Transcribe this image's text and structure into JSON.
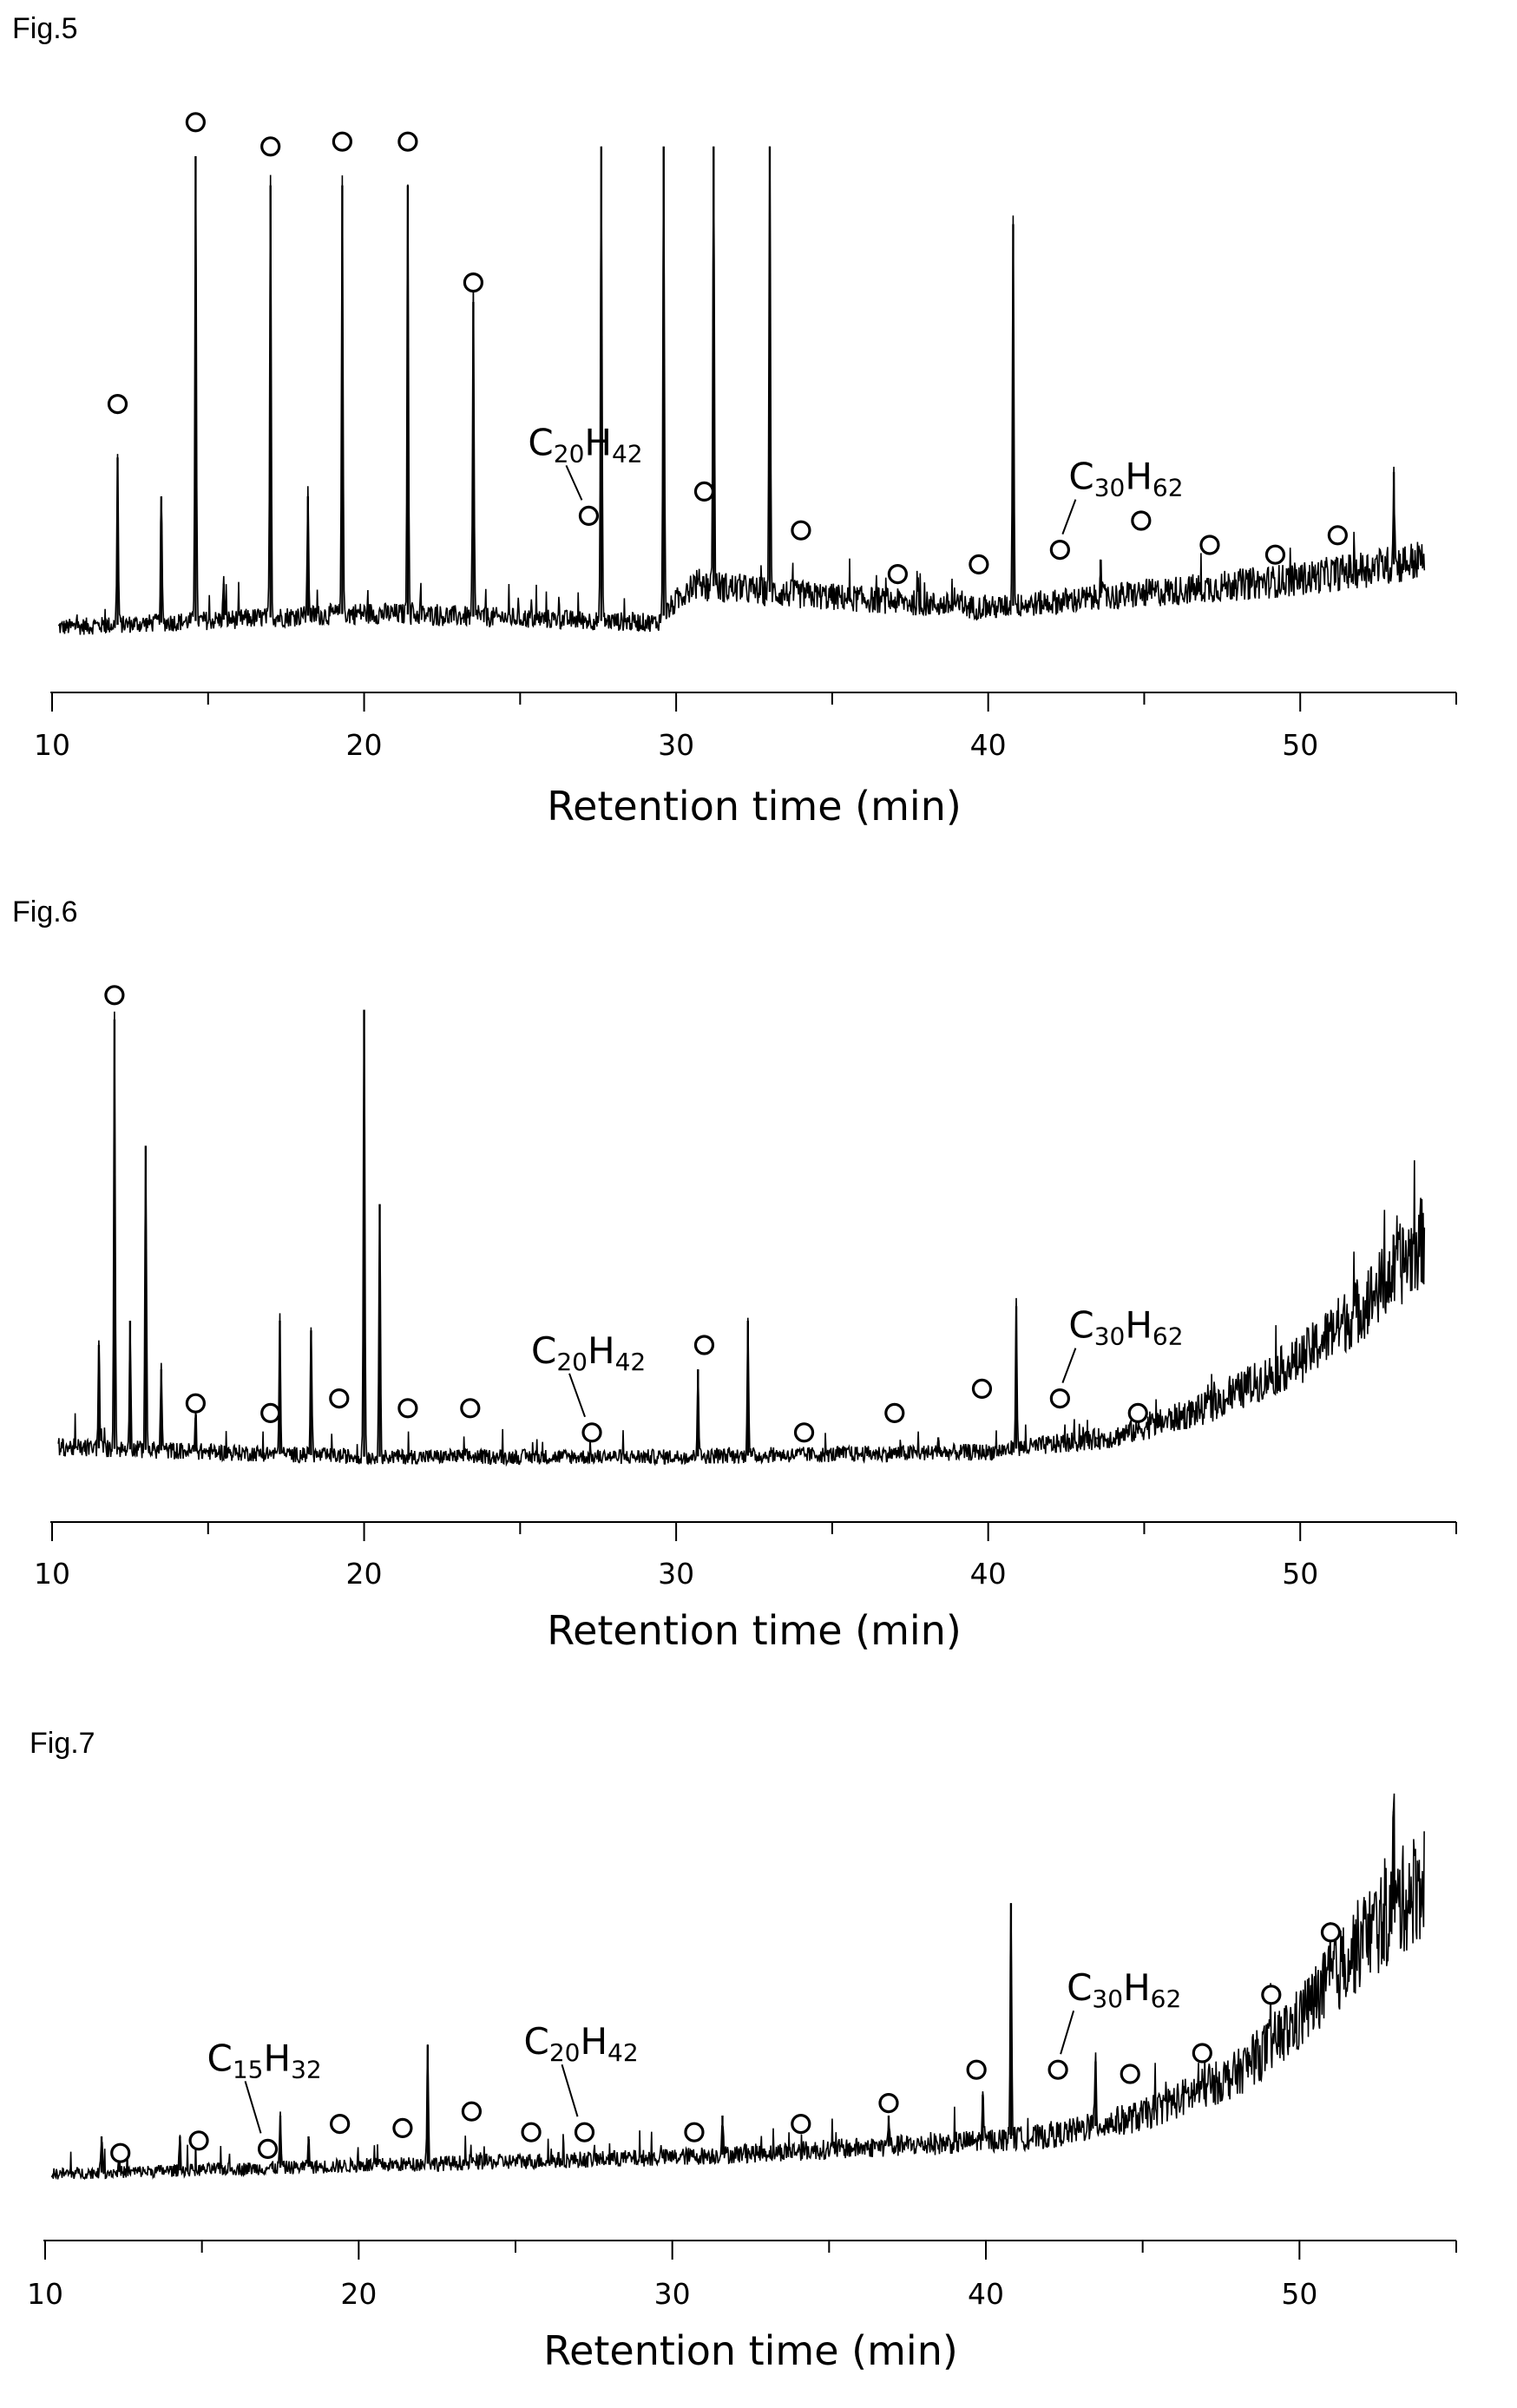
{
  "chart_data": [
    {
      "type": "line",
      "figure_label": "Fig.5",
      "xlabel": "Retention time (min)",
      "ylabel": "",
      "xlim": [
        10,
        55
      ],
      "xticks": [
        "10",
        "20",
        "30",
        "40",
        "50"
      ],
      "y_axis_visible": false,
      "grid": false,
      "baseline": [
        [
          10.2,
          0.03
        ],
        [
          20,
          0.06
        ],
        [
          29.4,
          0.04
        ],
        [
          30.5,
          0.12
        ],
        [
          33.5,
          0.1
        ],
        [
          40,
          0.07
        ],
        [
          45,
          0.1
        ],
        [
          50,
          0.13
        ],
        [
          54,
          0.17
        ]
      ],
      "peaks": [
        [
          12.1,
          0.38
        ],
        [
          13.5,
          0.3
        ],
        [
          14.6,
          1.0
        ],
        [
          15.5,
          0.12
        ],
        [
          17.0,
          0.94
        ],
        [
          18.2,
          0.3
        ],
        [
          19.3,
          0.94
        ],
        [
          21.4,
          0.94
        ],
        [
          23.5,
          0.7
        ],
        [
          27.6,
          1.02
        ],
        [
          29.6,
          1.02
        ],
        [
          31.2,
          1.02
        ],
        [
          33.0,
          1.02
        ],
        [
          40.8,
          0.86
        ],
        [
          43.6,
          0.17
        ],
        [
          53.0,
          0.35
        ]
      ],
      "markers": [
        [
          12.1,
          0.49
        ],
        [
          14.6,
          1.07
        ],
        [
          17.0,
          1.02
        ],
        [
          19.3,
          1.03
        ],
        [
          21.4,
          1.03
        ],
        [
          23.5,
          0.74
        ],
        [
          27.2,
          0.26
        ],
        [
          30.9,
          0.31
        ],
        [
          34.0,
          0.23
        ],
        [
          37.1,
          0.14
        ],
        [
          39.7,
          0.16
        ],
        [
          42.3,
          0.19
        ],
        [
          44.9,
          0.25
        ],
        [
          47.1,
          0.2
        ],
        [
          49.2,
          0.18
        ],
        [
          51.2,
          0.22
        ]
      ],
      "labels": [
        {
          "C": "C",
          "n1": "20",
          "H": "H",
          "n2": "42",
          "x": 27.2
        },
        {
          "C": "C",
          "n1": "30",
          "H": "H",
          "n2": "62",
          "x": 42.3
        }
      ]
    },
    {
      "type": "line",
      "figure_label": "Fig.6",
      "xlabel": "Retention time (min)",
      "ylabel": "",
      "xlim": [
        10,
        55
      ],
      "xticks": [
        "10",
        "20",
        "30",
        "40",
        "50"
      ],
      "y_axis_visible": false,
      "grid": false,
      "baseline": [
        [
          10.2,
          0.04
        ],
        [
          20,
          0.02
        ],
        [
          30,
          0.02
        ],
        [
          40,
          0.03
        ],
        [
          44,
          0.06
        ],
        [
          47,
          0.12
        ],
        [
          50,
          0.22
        ],
        [
          52,
          0.33
        ],
        [
          54,
          0.47
        ]
      ],
      "peaks": [
        [
          11.5,
          0.25
        ],
        [
          12.0,
          0.92
        ],
        [
          12.5,
          0.3
        ],
        [
          13.0,
          0.66
        ],
        [
          13.5,
          0.2
        ],
        [
          14.6,
          0.1
        ],
        [
          17.3,
          0.3
        ],
        [
          18.3,
          0.28
        ],
        [
          20.0,
          0.94
        ],
        [
          20.5,
          0.54
        ],
        [
          30.7,
          0.2
        ],
        [
          32.3,
          0.3
        ],
        [
          38.4,
          0.06
        ],
        [
          40.9,
          0.33
        ],
        [
          43.5,
          0.06
        ]
      ],
      "markers": [
        [
          12.0,
          0.97
        ],
        [
          14.6,
          0.13
        ],
        [
          17.0,
          0.11
        ],
        [
          19.2,
          0.14
        ],
        [
          21.4,
          0.12
        ],
        [
          23.4,
          0.12
        ],
        [
          27.3,
          0.07
        ],
        [
          30.9,
          0.25
        ],
        [
          34.1,
          0.07
        ],
        [
          37.0,
          0.11
        ],
        [
          39.8,
          0.16
        ],
        [
          42.3,
          0.14
        ],
        [
          44.8,
          0.11
        ]
      ],
      "labels": [
        {
          "C": "C",
          "n1": "20",
          "H": "H",
          "n2": "42",
          "x": 27.3
        },
        {
          "C": "C",
          "n1": "30",
          "H": "H",
          "n2": "62",
          "x": 42.3
        }
      ]
    },
    {
      "type": "line",
      "figure_label": "Fig.7",
      "xlabel": "Retention time (min)",
      "ylabel": "",
      "xlim": [
        10,
        55
      ],
      "xticks": [
        "10",
        "20",
        "30",
        "40",
        "50"
      ],
      "y_axis_visible": false,
      "grid": false,
      "baseline": [
        [
          10.2,
          0.01
        ],
        [
          20,
          0.03
        ],
        [
          30,
          0.05
        ],
        [
          38,
          0.08
        ],
        [
          42,
          0.1
        ],
        [
          45,
          0.15
        ],
        [
          48,
          0.25
        ],
        [
          50,
          0.38
        ],
        [
          52,
          0.57
        ],
        [
          54,
          0.72
        ]
      ],
      "peaks": [
        [
          11.8,
          0.1
        ],
        [
          14.3,
          0.1
        ],
        [
          17.5,
          0.15
        ],
        [
          18.4,
          0.1
        ],
        [
          22.2,
          0.32
        ],
        [
          31.6,
          0.15
        ],
        [
          36.9,
          0.15
        ],
        [
          39.9,
          0.2
        ],
        [
          40.8,
          0.66
        ],
        [
          43.5,
          0.28
        ],
        [
          53.0,
          0.88
        ]
      ],
      "markers": [
        [
          12.4,
          0.06
        ],
        [
          14.9,
          0.09
        ],
        [
          17.1,
          0.07
        ],
        [
          19.4,
          0.13
        ],
        [
          21.4,
          0.12
        ],
        [
          23.6,
          0.16
        ],
        [
          25.5,
          0.11
        ],
        [
          27.2,
          0.11
        ],
        [
          30.7,
          0.11
        ],
        [
          34.1,
          0.13
        ],
        [
          36.9,
          0.18
        ],
        [
          39.7,
          0.26
        ],
        [
          42.3,
          0.26
        ],
        [
          44.6,
          0.25
        ],
        [
          46.9,
          0.3
        ],
        [
          49.1,
          0.44
        ],
        [
          51.0,
          0.59
        ]
      ],
      "labels": [
        {
          "C": "C",
          "n1": "15",
          "H": "H",
          "n2": "32",
          "x": 17.1
        },
        {
          "C": "C",
          "n1": "20",
          "H": "H",
          "n2": "42",
          "x": 27.2
        },
        {
          "C": "C",
          "n1": "30",
          "H": "H",
          "n2": "62",
          "x": 42.3
        }
      ]
    }
  ]
}
